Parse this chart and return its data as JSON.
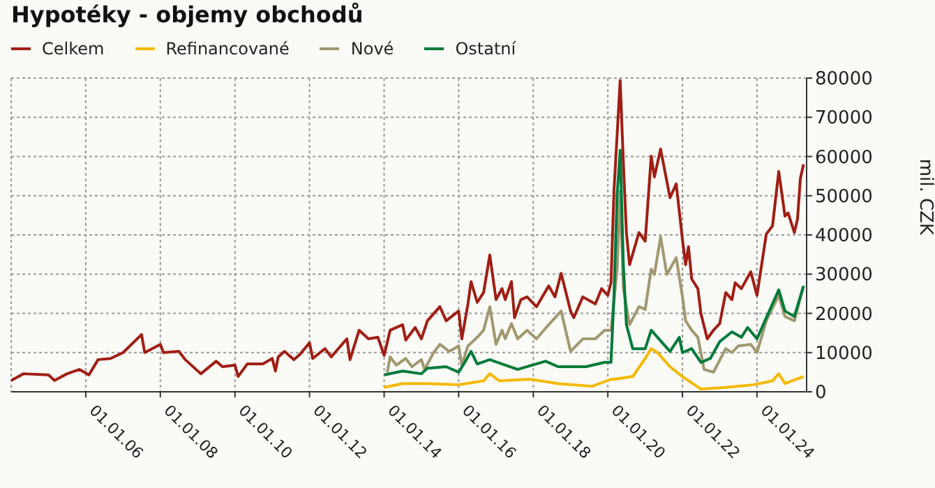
{
  "chart_data": {
    "type": "line",
    "title": "Hypotéky - objemy obchodů",
    "ylabel": "mil. CZK",
    "legend": "top left",
    "grid": true,
    "xlim": [
      "2004-01",
      "2025-05"
    ],
    "xticks": [
      {
        "value": "2006-01-01",
        "label": "01.01.06"
      },
      {
        "value": "2008-01-01",
        "label": "01.01.08"
      },
      {
        "value": "2010-01-01",
        "label": "01.01.10"
      },
      {
        "value": "2012-01-01",
        "label": "01.01.12"
      },
      {
        "value": "2014-01-01",
        "label": "01.01.14"
      },
      {
        "value": "2016-01-01",
        "label": "01.01.16"
      },
      {
        "value": "2018-01-01",
        "label": "01.01.18"
      },
      {
        "value": "2020-01-01",
        "label": "01.01.20"
      },
      {
        "value": "2022-01-01",
        "label": "01.01.22"
      },
      {
        "value": "2024-01-01",
        "label": "01.01.24"
      }
    ],
    "ylim": [
      0,
      80000
    ],
    "yticks": [
      0,
      10000,
      20000,
      30000,
      40000,
      50000,
      60000,
      70000,
      80000
    ],
    "series": [
      {
        "name": "Celkem",
        "color": "#a01e14",
        "x": [
          "2004-01",
          "2004-05",
          "2005-01",
          "2005-03",
          "2005-07",
          "2005-11",
          "2006-02",
          "2006-05",
          "2006-09",
          "2007-01",
          "2007-07",
          "2007-08",
          "2008-01",
          "2008-02",
          "2008-07",
          "2008-09",
          "2009-02",
          "2009-07",
          "2009-09",
          "2010-01",
          "2010-02",
          "2010-05",
          "2010-10",
          "2011-01",
          "2011-02",
          "2011-03",
          "2011-05",
          "2011-08",
          "2011-10",
          "2012-01",
          "2012-02",
          "2012-06",
          "2012-08",
          "2013-01",
          "2013-02",
          "2013-05",
          "2013-08",
          "2013-11",
          "2014-01",
          "2014-03",
          "2014-07",
          "2014-08",
          "2014-11",
          "2015-01",
          "2015-03",
          "2015-07",
          "2015-09",
          "2016-01",
          "2016-02",
          "2016-04",
          "2016-05",
          "2016-07",
          "2016-09",
          "2016-11",
          "2017-01",
          "2017-03",
          "2017-04",
          "2017-06",
          "2017-07",
          "2017-09",
          "2017-11",
          "2018-02",
          "2018-06",
          "2018-08",
          "2018-10",
          "2019-01",
          "2019-02",
          "2019-05",
          "2019-09",
          "2019-11",
          "2020-01",
          "2020-02",
          "2020-03",
          "2020-05",
          "2020-06",
          "2020-07",
          "2020-08",
          "2020-11",
          "2021-01",
          "2021-03",
          "2021-04",
          "2021-06",
          "2021-09",
          "2021-11",
          "2022-01",
          "2022-02",
          "2022-03",
          "2022-04",
          "2022-06",
          "2022-07",
          "2022-09",
          "2022-11",
          "2023-01",
          "2023-03",
          "2023-05",
          "2023-06",
          "2023-08",
          "2023-11",
          "2024-01",
          "2024-04",
          "2024-06",
          "2024-08",
          "2024-10",
          "2024-11",
          "2025-01",
          "2025-02",
          "2025-03",
          "2025-04"
        ],
        "values": [
          2900,
          4600,
          4300,
          2900,
          4600,
          5700,
          4300,
          8200,
          8500,
          10000,
          14600,
          10000,
          12100,
          10000,
          10300,
          8200,
          4600,
          7800,
          6400,
          6800,
          3900,
          7100,
          7100,
          8500,
          5300,
          8900,
          10300,
          8200,
          9600,
          12500,
          8500,
          11000,
          8900,
          13500,
          8200,
          15700,
          13500,
          13900,
          9300,
          15700,
          17100,
          13200,
          16400,
          13500,
          18100,
          21700,
          18100,
          20600,
          13500,
          22400,
          28100,
          22800,
          25300,
          34900,
          23500,
          26300,
          23500,
          28100,
          18900,
          23500,
          24200,
          21700,
          27000,
          24200,
          30200,
          20600,
          18900,
          24200,
          22400,
          26300,
          24600,
          27800,
          51200,
          79400,
          58400,
          40600,
          32400,
          40600,
          38400,
          60100,
          54800,
          61900,
          49500,
          53000,
          38800,
          32400,
          37000,
          28800,
          26300,
          19900,
          13500,
          15700,
          17400,
          25300,
          23500,
          27800,
          26300,
          30600,
          24600,
          40200,
          42300,
          56200,
          44800,
          45600,
          40600,
          44100,
          54400,
          58000
        ]
      },
      {
        "name": "Refinancované",
        "color": "#f5b800",
        "x": [
          "2014-01",
          "2014-07",
          "2015-03",
          "2016-01",
          "2016-09",
          "2016-11",
          "2017-02",
          "2017-12",
          "2018-09",
          "2019-08",
          "2020-02",
          "2020-03",
          "2020-09",
          "2021-01",
          "2021-03",
          "2021-05",
          "2021-09",
          "2022-01",
          "2022-07",
          "2023-03",
          "2023-12",
          "2024-06",
          "2024-08",
          "2024-10",
          "2025-04"
        ],
        "values": [
          1100,
          2100,
          2100,
          1800,
          2800,
          4600,
          2800,
          3200,
          2100,
          1400,
          3200,
          3200,
          3900,
          8500,
          11000,
          10000,
          6400,
          3900,
          700,
          1100,
          1800,
          2800,
          4600,
          2100,
          3900
        ]
      },
      {
        "name": "Nové",
        "color": "#a09870",
        "x": [
          "2014-02",
          "2014-03",
          "2014-05",
          "2014-08",
          "2014-10",
          "2015-01",
          "2015-02",
          "2015-05",
          "2015-07",
          "2015-10",
          "2016-01",
          "2016-02",
          "2016-04",
          "2016-07",
          "2016-09",
          "2016-11",
          "2017-01",
          "2017-03",
          "2017-04",
          "2017-06",
          "2017-08",
          "2017-11",
          "2018-02",
          "2018-06",
          "2018-10",
          "2019-01",
          "2019-05",
          "2019-09",
          "2019-12",
          "2020-02",
          "2020-04",
          "2020-05",
          "2020-06",
          "2020-08",
          "2020-11",
          "2021-01",
          "2021-03",
          "2021-04",
          "2021-06",
          "2021-08",
          "2021-11",
          "2022-01",
          "2022-02",
          "2022-04",
          "2022-06",
          "2022-08",
          "2022-11",
          "2023-03",
          "2023-05",
          "2023-07",
          "2023-11",
          "2024-01",
          "2024-04",
          "2024-08",
          "2024-10",
          "2025-01",
          "2025-04"
        ],
        "values": [
          5000,
          8900,
          6800,
          8500,
          6400,
          8200,
          5700,
          10000,
          12100,
          10300,
          11700,
          6800,
          11700,
          13900,
          15700,
          21700,
          12100,
          15700,
          13500,
          17400,
          13500,
          15700,
          13500,
          17100,
          20600,
          10300,
          13500,
          13500,
          15700,
          15700,
          31300,
          51200,
          26300,
          17100,
          21700,
          21000,
          31300,
          29900,
          39500,
          29900,
          34200,
          24200,
          18100,
          15700,
          13900,
          5700,
          5000,
          11000,
          10000,
          11700,
          12100,
          10000,
          18100,
          24600,
          19200,
          18100,
          27000
        ]
      },
      {
        "name": "Ostatní",
        "color": "#007a3a",
        "x": [
          "2014-01",
          "2014-07",
          "2015-01",
          "2015-03",
          "2015-09",
          "2016-01",
          "2016-03",
          "2016-05",
          "2016-07",
          "2016-11",
          "2017-03",
          "2017-08",
          "2018-05",
          "2018-09",
          "2019-06",
          "2019-12",
          "2020-02",
          "2020-03",
          "2020-04",
          "2020-05",
          "2020-06",
          "2020-07",
          "2020-09",
          "2021-01",
          "2021-03",
          "2021-07",
          "2021-09",
          "2021-12",
          "2022-01",
          "2022-04",
          "2022-07",
          "2022-10",
          "2023-01",
          "2023-05",
          "2023-08",
          "2023-10",
          "2024-01",
          "2024-04",
          "2024-08",
          "2024-10",
          "2025-01",
          "2025-04"
        ],
        "values": [
          4300,
          5300,
          4600,
          6000,
          6400,
          5000,
          7500,
          10300,
          7100,
          8200,
          7100,
          5700,
          7800,
          6400,
          6400,
          7500,
          7500,
          24200,
          50200,
          61600,
          32400,
          17100,
          11000,
          11000,
          15700,
          12100,
          10300,
          13900,
          10000,
          11000,
          7500,
          8500,
          12800,
          15300,
          13900,
          16400,
          13500,
          18900,
          26000,
          20600,
          19200,
          27000
        ]
      }
    ]
  }
}
